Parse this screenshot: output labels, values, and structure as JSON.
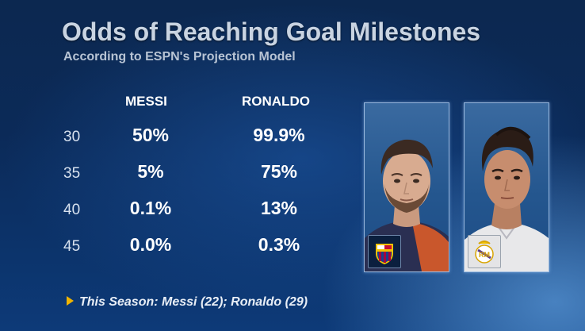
{
  "title": "Odds of Reaching Goal Milestones",
  "subtitle": "According to ESPN's Projection Model",
  "columns": [
    "MESSI",
    "RONALDO"
  ],
  "rows": [
    {
      "goals": "30",
      "messi": "50%",
      "ronaldo": "99.9%"
    },
    {
      "goals": "35",
      "messi": "5%",
      "ronaldo": "75%"
    },
    {
      "goals": "40",
      "messi": "0.1%",
      "ronaldo": "13%"
    },
    {
      "goals": "45",
      "messi": "0.0%",
      "ronaldo": "0.3%"
    }
  ],
  "footer": {
    "icon": "play-arrow-icon",
    "text": "This Season: Messi (22); Ronaldo (29)"
  },
  "images": {
    "messi_photo": "player-photo-messi",
    "ronaldo_photo": "player-photo-ronaldo",
    "messi_badge": "fc-barcelona-crest-icon",
    "ronaldo_badge": "real-madrid-crest-icon"
  },
  "colors": {
    "accent_arrow": "#f0b400",
    "barcelona_blue": "#1a3f8a",
    "barcelona_red": "#a5003f"
  }
}
